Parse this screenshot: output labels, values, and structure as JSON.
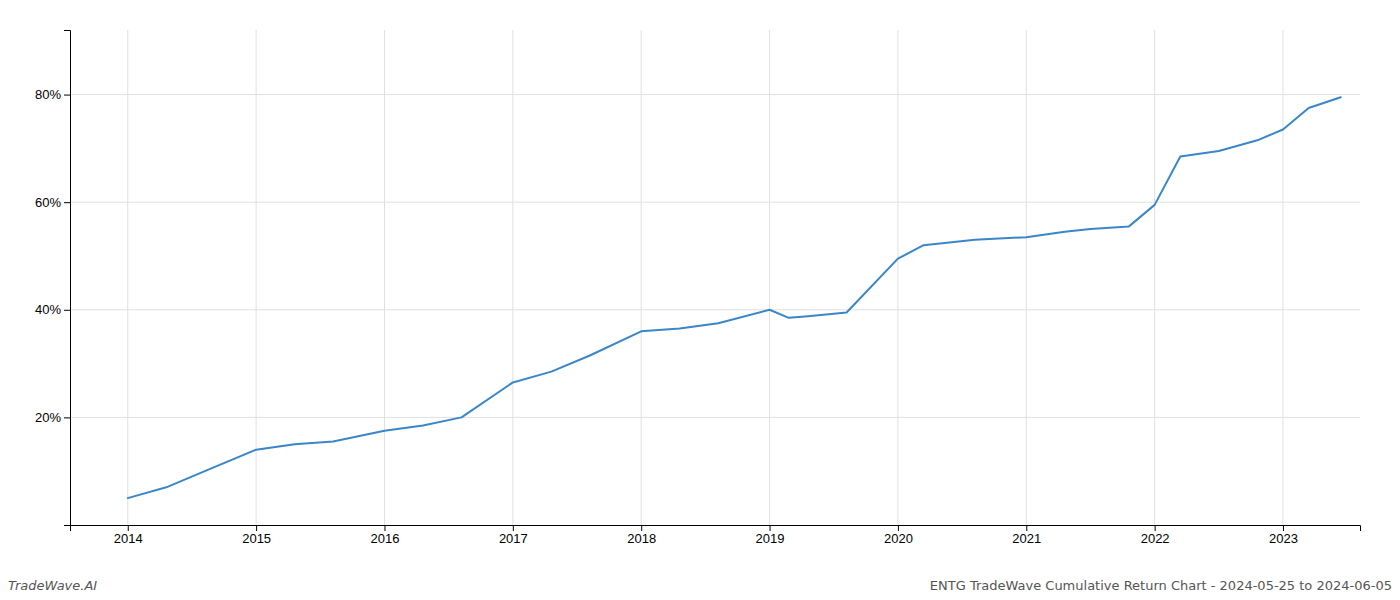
{
  "chart_data": {
    "type": "line",
    "x": [
      2014.0,
      2014.3,
      2014.6,
      2015.0,
      2015.3,
      2015.6,
      2016.0,
      2016.3,
      2016.6,
      2017.0,
      2017.3,
      2017.6,
      2018.0,
      2018.3,
      2018.6,
      2019.0,
      2019.15,
      2019.3,
      2019.6,
      2020.0,
      2020.2,
      2020.4,
      2020.6,
      2021.0,
      2021.3,
      2021.5,
      2021.8,
      2022.0,
      2022.2,
      2022.5,
      2022.8,
      2023.0,
      2023.2,
      2023.45
    ],
    "values": [
      0.05,
      0.07,
      0.1,
      0.14,
      0.15,
      0.155,
      0.175,
      0.185,
      0.2,
      0.265,
      0.285,
      0.315,
      0.36,
      0.365,
      0.375,
      0.4,
      0.385,
      0.388,
      0.395,
      0.495,
      0.52,
      0.525,
      0.53,
      0.535,
      0.545,
      0.55,
      0.555,
      0.595,
      0.685,
      0.695,
      0.715,
      0.735,
      0.775,
      0.795
    ],
    "color": "#3a86c8",
    "xlim": [
      2013.55,
      2023.6
    ],
    "xticks": [
      2014,
      2015,
      2016,
      2017,
      2018,
      2019,
      2020,
      2021,
      2022,
      2023
    ],
    "ylim": [
      0.0,
      0.92
    ],
    "yticks": [
      {
        "value": 0.2,
        "label": "20%"
      },
      {
        "value": 0.4,
        "label": "40%"
      },
      {
        "value": 0.6,
        "label": "60%"
      },
      {
        "value": 0.8,
        "label": "80%"
      }
    ],
    "grid": true,
    "annotations": [
      "TradeWave.AI",
      "ENTG TradeWave Cumulative Return Chart - 2024-05-25 to 2024-06-05"
    ]
  }
}
